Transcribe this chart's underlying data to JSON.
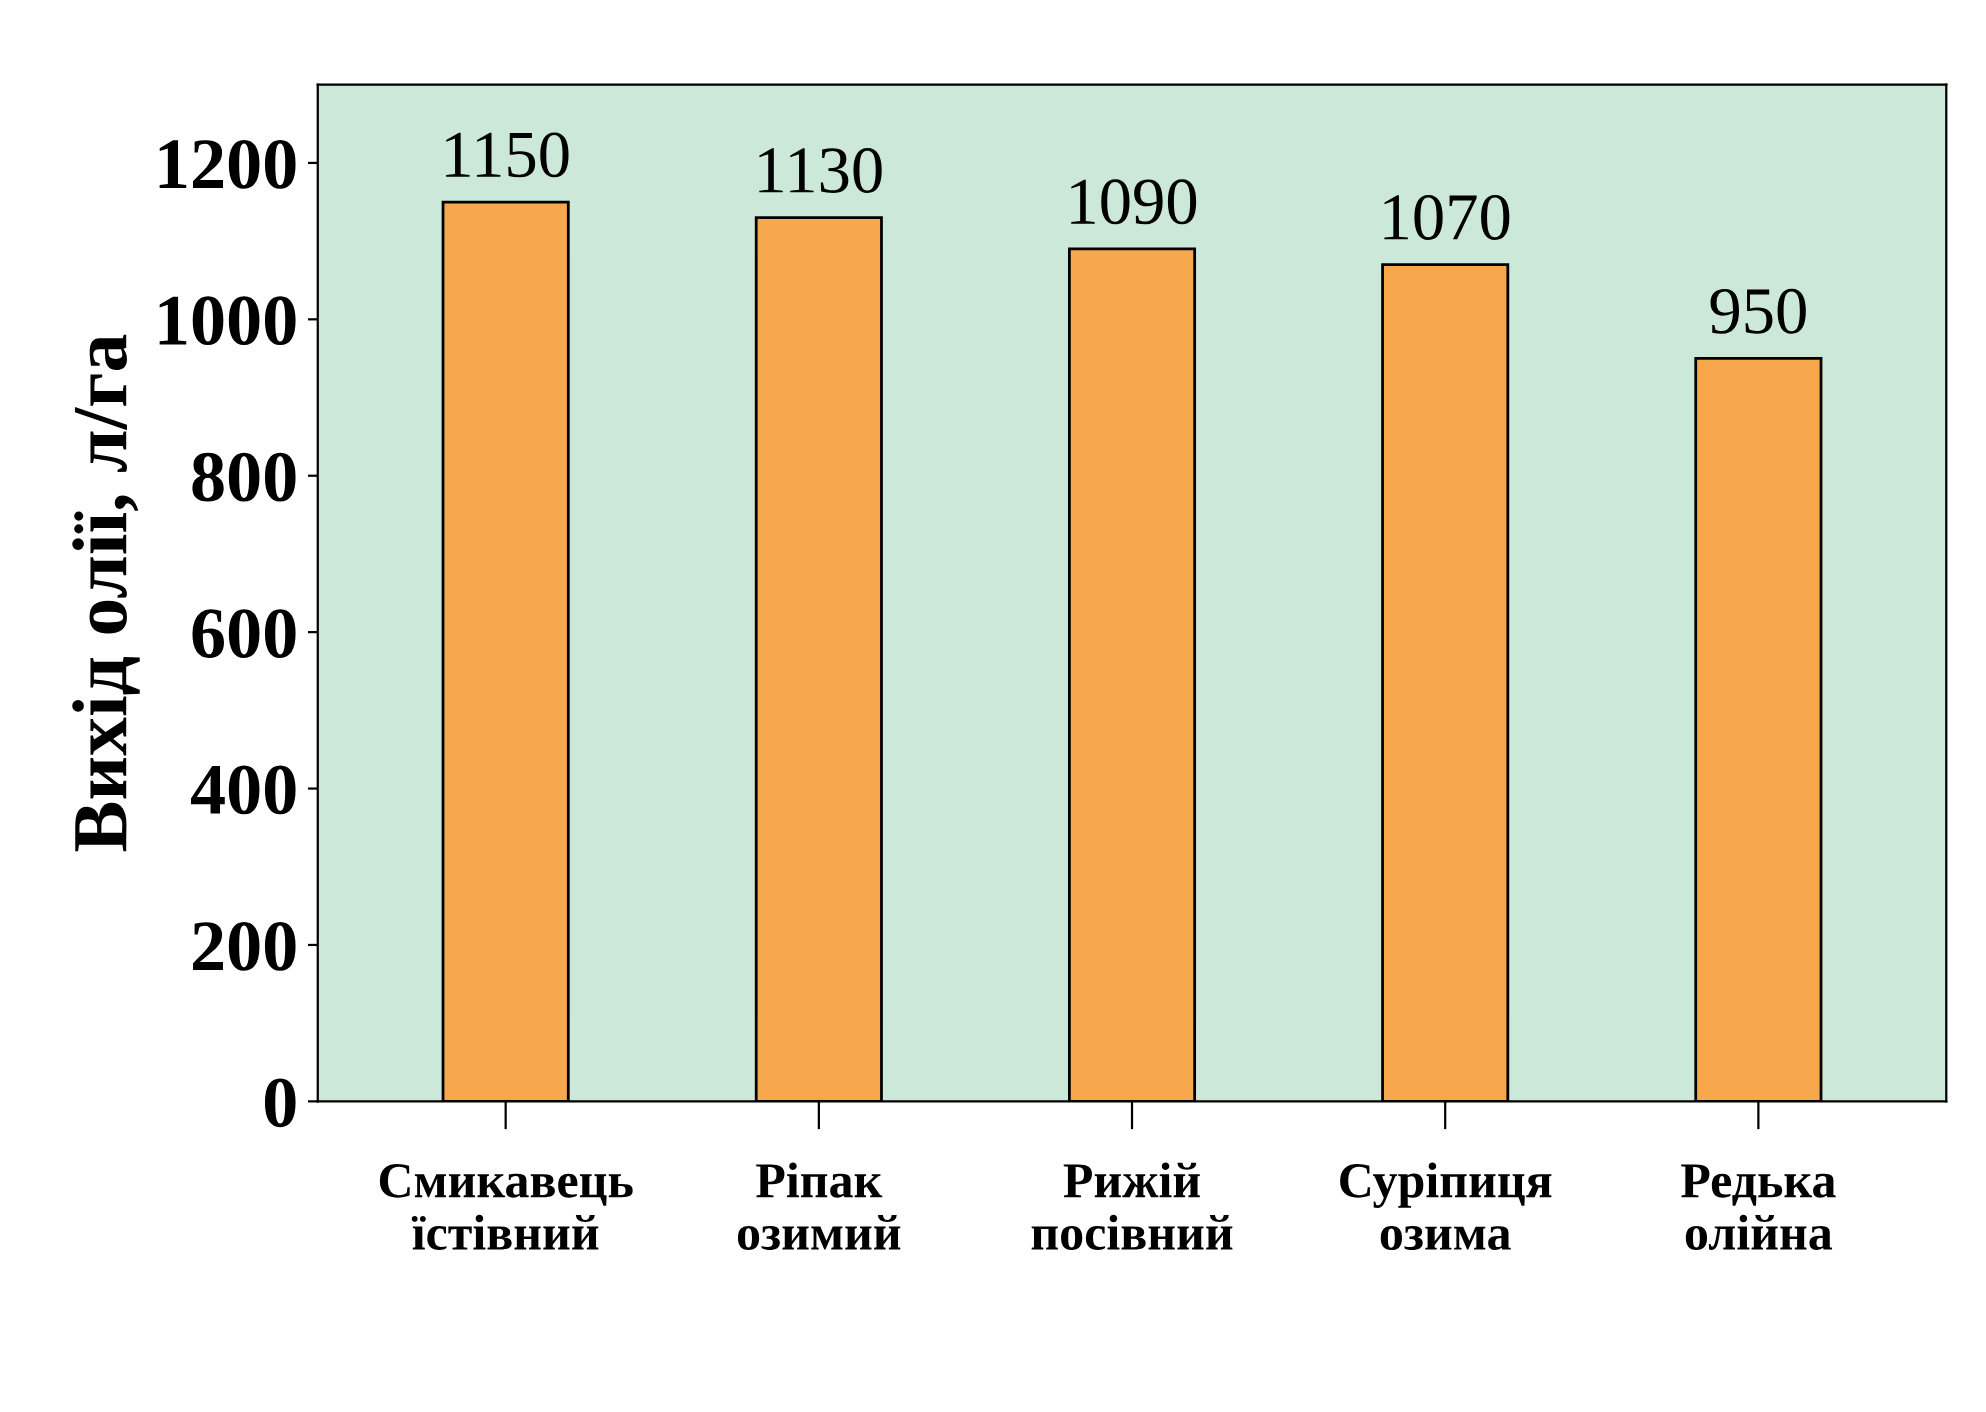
{
  "chart_data": {
    "type": "bar",
    "ylabel": "Вихід олії, л/га",
    "categories": [
      "Смикавець\nїстівний",
      "Ріпак\nозимий",
      "Рижій\nпосівний",
      "Суріпиця\nозима",
      "Редька\nолійна"
    ],
    "values": [
      1150,
      1130,
      1090,
      1070,
      950
    ],
    "color": "#f8a84c",
    "ylim": [
      0,
      1300
    ],
    "yticks": [
      0,
      200,
      400,
      600,
      800,
      1000,
      1200
    ],
    "data_labels": true,
    "grid": false
  }
}
